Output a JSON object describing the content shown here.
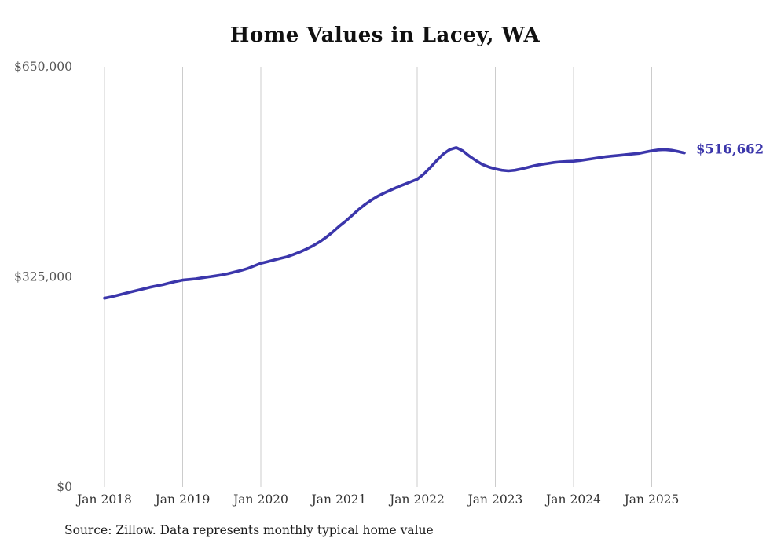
{
  "source": "Source: Zillow. Data represents monthly typical home value",
  "chart_data": {
    "type": "line",
    "title": "Home Values in Lacey, WA",
    "series_name": "Monthly typical home value",
    "start_month": "Jan 2018",
    "cadence": "monthly",
    "ylim": [
      0,
      650000
    ],
    "grid": "vertical-only",
    "grid_color": "#cccccc",
    "line_color": "#3b36ab",
    "end_label": "$516,662",
    "final_value": 516662,
    "x_ticks": [
      {
        "index": 0,
        "label": "Jan 2018"
      },
      {
        "index": 12,
        "label": "Jan 2019"
      },
      {
        "index": 24,
        "label": "Jan 2020"
      },
      {
        "index": 36,
        "label": "Jan 2021"
      },
      {
        "index": 48,
        "label": "Jan 2022"
      },
      {
        "index": 60,
        "label": "Jan 2023"
      },
      {
        "index": 72,
        "label": "Jan 2024"
      },
      {
        "index": 84,
        "label": "Jan 2025"
      }
    ],
    "y_ticks": [
      {
        "value": 0,
        "label": "$0"
      },
      {
        "value": 325000,
        "label": "$325,000"
      },
      {
        "value": 650000,
        "label": "$650,000"
      }
    ],
    "values": [
      292000,
      294000,
      296500,
      299000,
      301500,
      304000,
      306500,
      309000,
      311000,
      313000,
      315500,
      318000,
      320000,
      321000,
      322000,
      323500,
      325000,
      326500,
      328000,
      330000,
      332500,
      335000,
      338000,
      342000,
      346000,
      348500,
      351000,
      353500,
      356000,
      359500,
      363500,
      368000,
      373000,
      379000,
      386000,
      394000,
      403000,
      411000,
      420000,
      429000,
      437000,
      444000,
      450000,
      455000,
      459500,
      464000,
      468000,
      472000,
      476000,
      484000,
      494000,
      505000,
      515000,
      522000,
      525000,
      520000,
      512000,
      505000,
      499000,
      495000,
      492000,
      490000,
      489000,
      490000,
      492000,
      494500,
      497000,
      499000,
      500500,
      502000,
      503000,
      503500,
      504000,
      505000,
      506500,
      508000,
      509500,
      511000,
      512000,
      513000,
      514000,
      515000,
      516000,
      518000,
      520000,
      521500,
      522000,
      521000,
      519000,
      516662
    ]
  }
}
